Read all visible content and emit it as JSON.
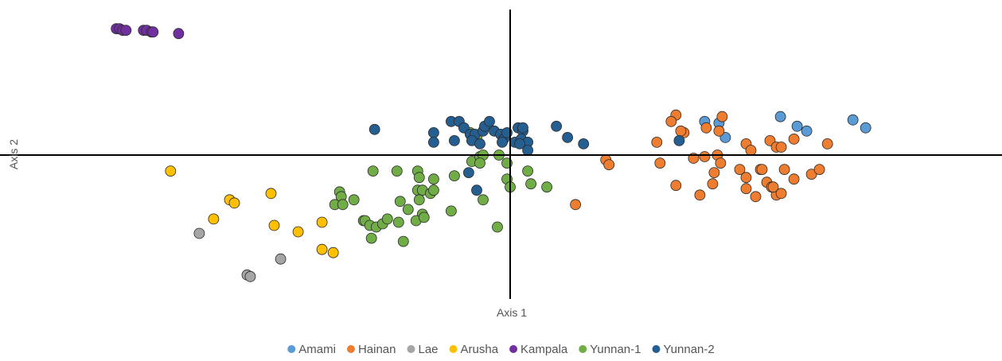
{
  "chart_data": {
    "type": "scatter",
    "title": "",
    "xlabel": "Axis 1",
    "ylabel": "Axis 2",
    "xlim": [
      -640,
      617
    ],
    "ylim": [
      -180,
      182
    ],
    "grid": false,
    "legend_position": "bottom",
    "series": [
      {
        "name": "Amami",
        "color": "#5B9BD5",
        "points": [
          [
            244,
            42
          ],
          [
            262,
            40
          ],
          [
            270,
            22
          ],
          [
            339,
            48
          ],
          [
            360,
            36
          ],
          [
            372,
            30
          ],
          [
            430,
            44
          ],
          [
            446,
            34
          ]
        ]
      },
      {
        "name": "Hainan",
        "color": "#ED7D31",
        "points": [
          [
            208,
            50
          ],
          [
            202,
            42
          ],
          [
            218,
            28
          ],
          [
            214,
            30
          ],
          [
            246,
            34
          ],
          [
            262,
            30
          ],
          [
            266,
            48
          ],
          [
            184,
            16
          ],
          [
            188,
            -10
          ],
          [
            230,
            -4
          ],
          [
            244,
            -2
          ],
          [
            260,
            0
          ],
          [
            264,
            -10
          ],
          [
            256,
            -22
          ],
          [
            208,
            -38
          ],
          [
            238,
            -50
          ],
          [
            254,
            -36
          ],
          [
            296,
            14
          ],
          [
            302,
            6
          ],
          [
            326,
            18
          ],
          [
            334,
            10
          ],
          [
            340,
            10
          ],
          [
            356,
            20
          ],
          [
            398,
            14
          ],
          [
            288,
            -18
          ],
          [
            296,
            -28
          ],
          [
            314,
            -18
          ],
          [
            316,
            -18
          ],
          [
            344,
            -18
          ],
          [
            322,
            -34
          ],
          [
            328,
            -40
          ],
          [
            334,
            -50
          ],
          [
            356,
            -30
          ],
          [
            378,
            -24
          ],
          [
            388,
            -18
          ],
          [
            296,
            -42
          ],
          [
            308,
            -52
          ],
          [
            330,
            -40
          ],
          [
            340,
            -48
          ],
          [
            120,
            -6
          ],
          [
            124,
            -12
          ],
          [
            82,
            -62
          ]
        ]
      },
      {
        "name": "Lae",
        "color": "#A5A5A5",
        "points": [
          [
            -390,
            -98
          ],
          [
            -288,
            -130
          ],
          [
            -330,
            -150
          ],
          [
            -326,
            -152
          ]
        ]
      },
      {
        "name": "Arusha",
        "color": "#FFC000",
        "points": [
          [
            -426,
            -20
          ],
          [
            -352,
            -56
          ],
          [
            -346,
            -60
          ],
          [
            -372,
            -80
          ],
          [
            -300,
            -48
          ],
          [
            -296,
            -88
          ],
          [
            -236,
            -84
          ],
          [
            -266,
            -96
          ],
          [
            -236,
            -118
          ],
          [
            -222,
            -122
          ]
        ]
      },
      {
        "name": "Kampala",
        "color": "#7030A0",
        "points": [
          [
            -494,
            158
          ],
          [
            -490,
            158
          ],
          [
            -486,
            156
          ],
          [
            -482,
            156
          ],
          [
            -460,
            156
          ],
          [
            -456,
            156
          ],
          [
            -450,
            154
          ],
          [
            -448,
            154
          ],
          [
            -416,
            152
          ]
        ]
      },
      {
        "name": "Yunnan-1",
        "color": "#70AD47",
        "points": [
          [
            -214,
            -46
          ],
          [
            -212,
            -52
          ],
          [
            -220,
            -62
          ],
          [
            -210,
            -62
          ],
          [
            -196,
            -56
          ],
          [
            -184,
            -82
          ],
          [
            -182,
            -82
          ],
          [
            -176,
            -88
          ],
          [
            -168,
            -90
          ],
          [
            -160,
            -86
          ],
          [
            -154,
            -80
          ],
          [
            -174,
            -104
          ],
          [
            -172,
            -20
          ],
          [
            -142,
            -20
          ],
          [
            -134,
            -108
          ],
          [
            -138,
            -58
          ],
          [
            -128,
            -68
          ],
          [
            -140,
            -84
          ],
          [
            -116,
            -20
          ],
          [
            -114,
            -28
          ],
          [
            -116,
            -44
          ],
          [
            -110,
            -44
          ],
          [
            -100,
            -48
          ],
          [
            -96,
            -30
          ],
          [
            -96,
            -44
          ],
          [
            -114,
            -56
          ],
          [
            -110,
            -74
          ],
          [
            -118,
            -82
          ],
          [
            -108,
            -78
          ],
          [
            -74,
            -70
          ],
          [
            -70,
            -26
          ],
          [
            -48,
            -8
          ],
          [
            -38,
            -2
          ],
          [
            -34,
            0
          ],
          [
            -38,
            -10
          ],
          [
            -14,
            0
          ],
          [
            -4,
            -10
          ],
          [
            -34,
            -56
          ],
          [
            -16,
            -90
          ],
          [
            -4,
            -30
          ],
          [
            0,
            -40
          ],
          [
            22,
            -20
          ],
          [
            26,
            -36
          ],
          [
            46,
            -40
          ],
          [
            -42,
            22
          ],
          [
            -50,
            28
          ]
        ]
      },
      {
        "name": "Yunnan-2",
        "color": "#255E91",
        "points": [
          [
            -170,
            32
          ],
          [
            -96,
            28
          ],
          [
            -96,
            16
          ],
          [
            -74,
            42
          ],
          [
            -64,
            42
          ],
          [
            -58,
            34
          ],
          [
            -50,
            26
          ],
          [
            -44,
            26
          ],
          [
            -34,
            30
          ],
          [
            -32,
            36
          ],
          [
            -26,
            42
          ],
          [
            -20,
            30
          ],
          [
            -12,
            26
          ],
          [
            -8,
            20
          ],
          [
            -4,
            28
          ],
          [
            -70,
            18
          ],
          [
            -48,
            18
          ],
          [
            -38,
            14
          ],
          [
            -10,
            16
          ],
          [
            6,
            16
          ],
          [
            10,
            34
          ],
          [
            16,
            30
          ],
          [
            16,
            34
          ],
          [
            14,
            20
          ],
          [
            22,
            16
          ],
          [
            22,
            6
          ],
          [
            12,
            14
          ],
          [
            58,
            36
          ],
          [
            72,
            22
          ],
          [
            92,
            14
          ],
          [
            212,
            18
          ],
          [
            -52,
            -22
          ],
          [
            -42,
            -44
          ]
        ]
      }
    ]
  }
}
